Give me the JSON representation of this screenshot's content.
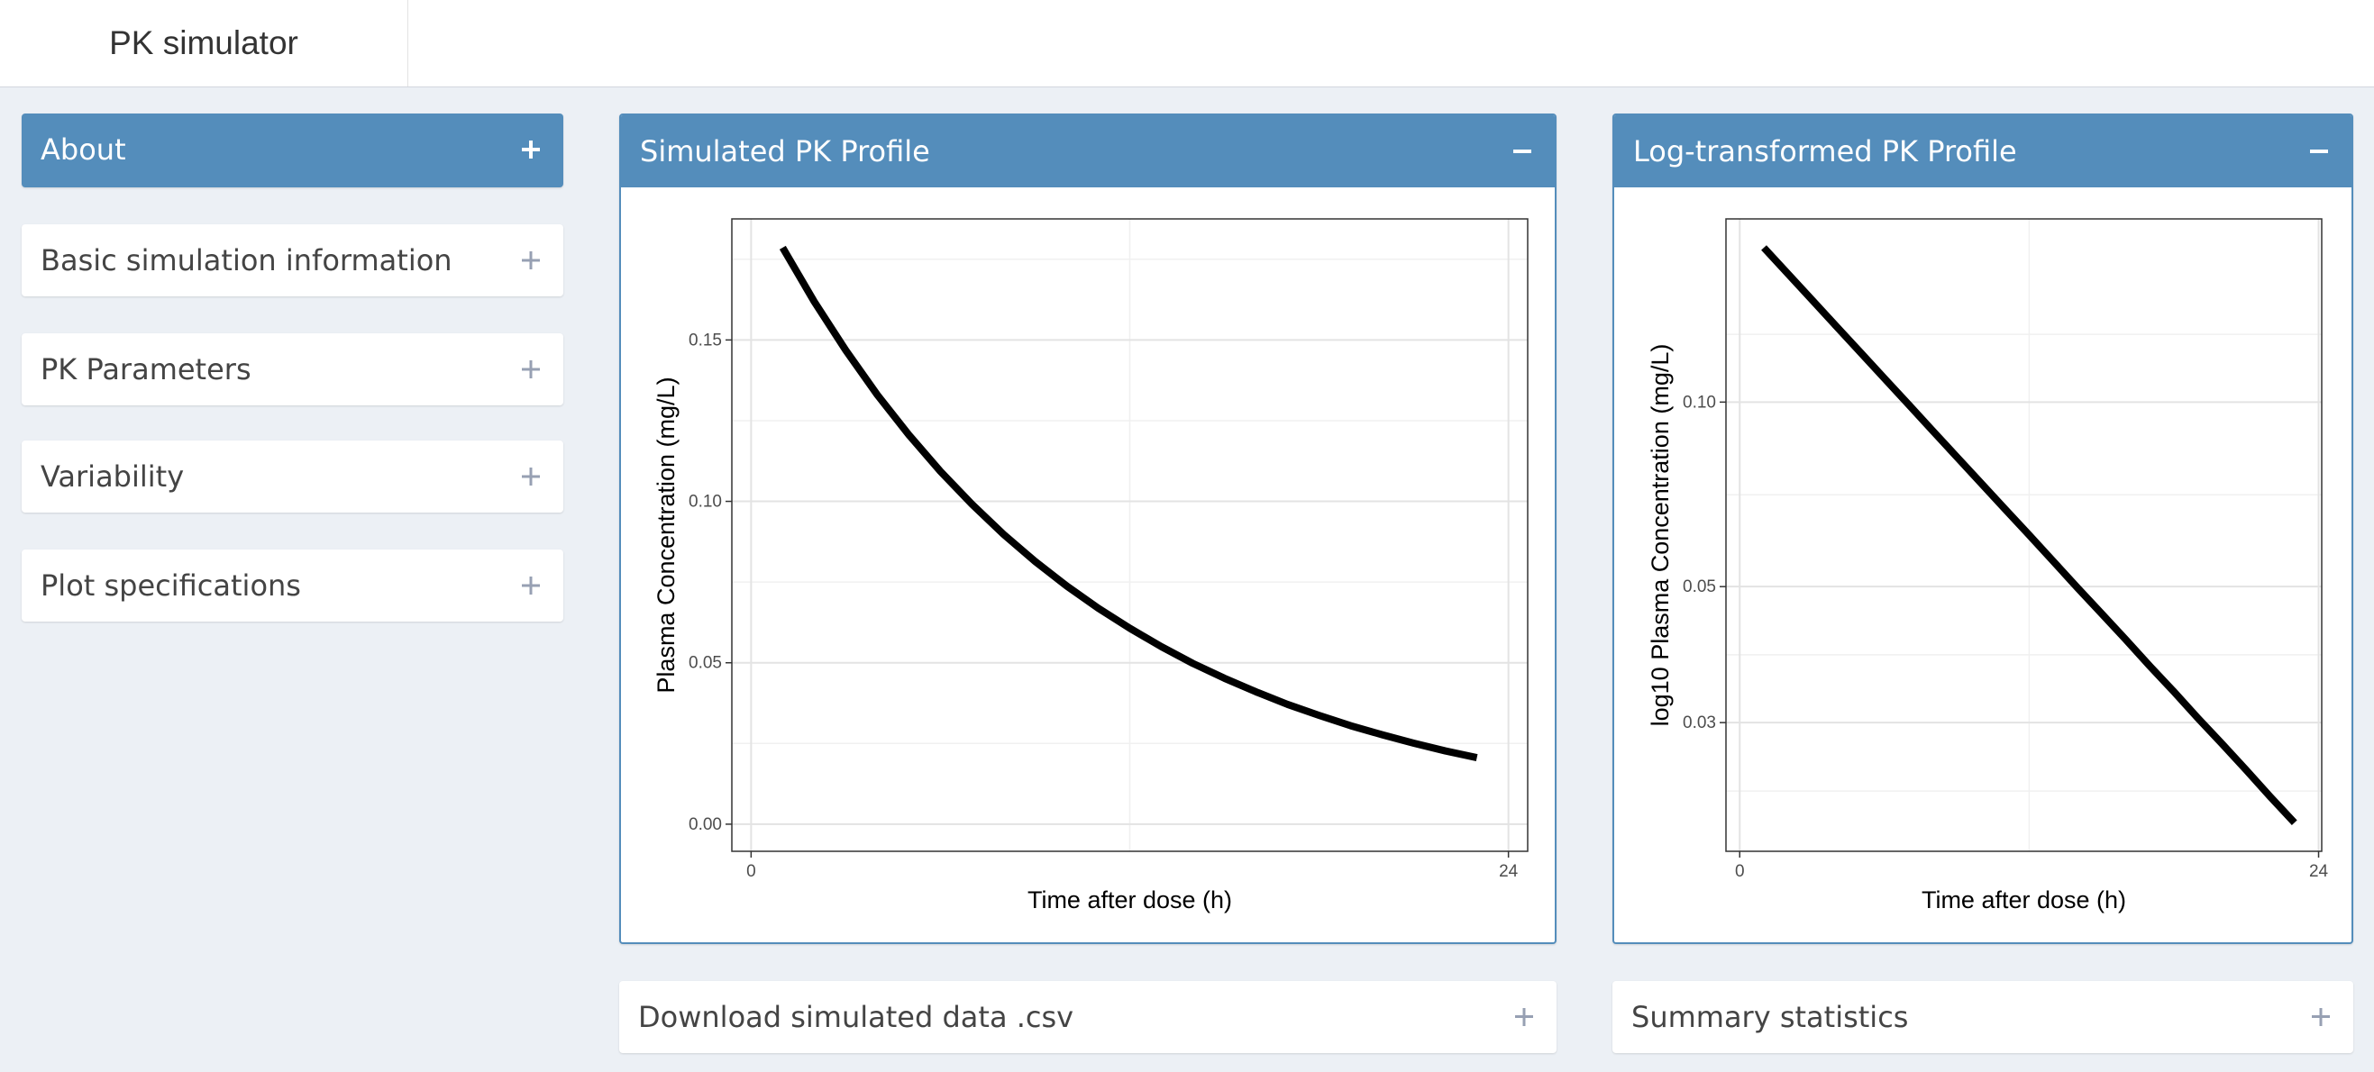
{
  "header": {
    "title": "PK simulator"
  },
  "sidebar": {
    "boxes": [
      {
        "title": "About",
        "active": true
      },
      {
        "title": "Basic simulation information",
        "active": false
      },
      {
        "title": "PK Parameters",
        "active": false
      },
      {
        "title": "Variability",
        "active": false
      },
      {
        "title": "Plot specifications",
        "active": false
      }
    ]
  },
  "bottom_boxes": [
    "Download simulated data .csv",
    "Summary statistics"
  ],
  "chart_data": [
    {
      "type": "line",
      "title": "Simulated PK Profile",
      "x_label": "Time after dose (h)",
      "y_label": "Plasma Concentration (mg/L)",
      "x": [
        1,
        2,
        3,
        4,
        5,
        6,
        7,
        8,
        9,
        10,
        11,
        12,
        13,
        14,
        15,
        16,
        17,
        18,
        19,
        20,
        21,
        22,
        23
      ],
      "series": [
        {
          "color": "#000000",
          "values": [
            0.1786,
            0.1619,
            0.1468,
            0.133,
            0.1206,
            0.1093,
            0.0991,
            0.0898,
            0.0814,
            0.0738,
            0.0669,
            0.0607,
            0.055,
            0.0498,
            0.0452,
            0.041,
            0.0371,
            0.0337,
            0.0305,
            0.0277,
            0.0251,
            0.0227,
            0.0206
          ]
        }
      ],
      "xlim": [
        -0.61,
        24.61
      ],
      "xticks": [
        0,
        24
      ],
      "xminor": [
        12
      ],
      "ylim": [
        -0.0084,
        0.1875
      ],
      "yticks": [
        {
          "value": 0,
          "label": "0.00"
        },
        0.05,
        {
          "value": 0.1,
          "label": "0.10"
        },
        0.15
      ],
      "yminor": [
        0.025,
        0.075,
        0.125,
        0.175
      ],
      "log_y": false,
      "grid": true
    },
    {
      "type": "line",
      "title": "Log-transformed PK Profile",
      "x_label": "Time after dose (h)",
      "y_label": "log10 Plasma Concentration (mg/L)",
      "x": [
        1,
        2,
        3,
        4,
        5,
        6,
        7,
        8,
        9,
        10,
        11,
        12,
        13,
        14,
        15,
        16,
        17,
        18,
        19,
        20,
        21,
        22,
        23
      ],
      "series": [
        {
          "color": "#000000",
          "values": [
            0.1786,
            0.1619,
            0.1468,
            0.133,
            0.1206,
            0.1093,
            0.0991,
            0.0898,
            0.0814,
            0.0738,
            0.0669,
            0.0607,
            0.055,
            0.0498,
            0.0452,
            0.041,
            0.0371,
            0.0337,
            0.0305,
            0.0277,
            0.0251,
            0.0227,
            0.0206
          ]
        }
      ],
      "xlim": [
        -0.57,
        24.13
      ],
      "xticks": [
        0,
        24
      ],
      "xminor": [
        12
      ],
      "ylim": [
        0.0185,
        0.199
      ],
      "yticks": [
        0.03,
        0.05,
        {
          "value": 0.1,
          "label": "0.10"
        }
      ],
      "yminor": [
        0.0232,
        0.0387,
        0.0706,
        0.129
      ],
      "log_y": true,
      "grid": true
    }
  ]
}
